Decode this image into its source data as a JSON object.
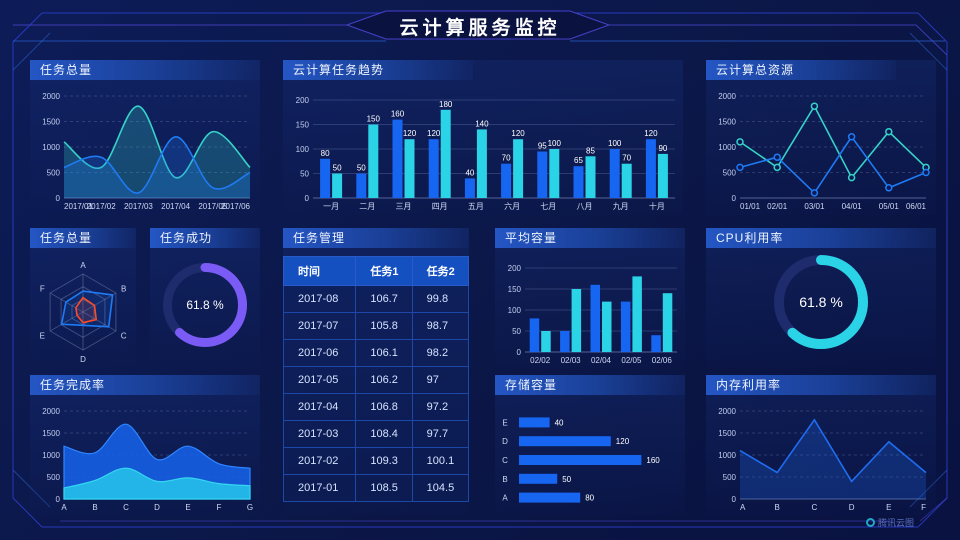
{
  "header": {
    "title": "云计算服务监控"
  },
  "footer": {
    "brand": "腾讯云图"
  },
  "colors": {
    "background": "#0b1747",
    "frame_line": "#2e3ecf",
    "accent_blue": "#1766f2",
    "accent_cyan": "#2bd3e6",
    "accent_teal": "#35d3c8",
    "line_blue": "#1f7bf4",
    "gauge_purple": "#7b5bf5",
    "radar_orange": "#ff4a26",
    "table_header": "#1450c0"
  },
  "chart_data": [
    {
      "id": "task_total_line",
      "type": "area",
      "title": "任务总量",
      "x": [
        "2017/01",
        "2017/02",
        "2017/03",
        "2017/04",
        "2017/05",
        "2017/06"
      ],
      "ylim": [
        0,
        2000
      ],
      "yticks": [
        0,
        500,
        1000,
        1500,
        2000
      ],
      "grid": "dashed",
      "smooth": true,
      "series": [
        {
          "color": "#35d3c8",
          "values": [
            1100,
            600,
            1800,
            400,
            1300,
            600
          ],
          "fill": true
        },
        {
          "color": "#1f7bf4",
          "values": [
            600,
            800,
            100,
            1200,
            200,
            500
          ],
          "fill": true
        }
      ]
    },
    {
      "id": "cloud_task_trend",
      "type": "bar",
      "title": "云计算任务趋势",
      "categories": [
        "一月",
        "二月",
        "三月",
        "四月",
        "五月",
        "六月",
        "七月",
        "八月",
        "九月",
        "十月"
      ],
      "ylim": [
        0,
        200
      ],
      "yticks": [
        0,
        50,
        100,
        150,
        200
      ],
      "value_labels": true,
      "series": [
        {
          "name": "任务1",
          "color": "#1766f2",
          "values": [
            80,
            50,
            160,
            120,
            40,
            70,
            95,
            65,
            100,
            120
          ]
        },
        {
          "name": "任务2",
          "color": "#2bd3e6",
          "values": [
            50,
            150,
            120,
            180,
            140,
            120,
            100,
            85,
            70,
            90
          ]
        }
      ]
    },
    {
      "id": "cloud_total_resource",
      "type": "line",
      "title": "云计算总资源",
      "x": [
        "01/01",
        "02/01",
        "03/01",
        "04/01",
        "05/01",
        "06/01"
      ],
      "ylim": [
        0,
        2000
      ],
      "yticks": [
        0,
        500,
        1000,
        1500,
        2000
      ],
      "grid": "dashed",
      "markers": true,
      "series": [
        {
          "color": "#35d3c8",
          "values": [
            1100,
            600,
            1800,
            400,
            1300,
            600
          ]
        },
        {
          "color": "#1f7bf4",
          "values": [
            600,
            800,
            100,
            1200,
            200,
            500
          ]
        }
      ]
    },
    {
      "id": "task_total_radar",
      "type": "radar",
      "title": "任务总量",
      "axes": [
        "A",
        "B",
        "C",
        "D",
        "E",
        "F"
      ],
      "max": 100,
      "series": [
        {
          "color": "#1f7bf4",
          "values": [
            55,
            90,
            78,
            35,
            65,
            52
          ]
        },
        {
          "color": "#ff4a26",
          "values": [
            38,
            35,
            40,
            28,
            18,
            22
          ]
        }
      ]
    },
    {
      "id": "task_success_gauge",
      "type": "donut",
      "title": "任务成功",
      "percent": 61.8,
      "label": "61.8 %",
      "color": "#7b5bf5",
      "track": "#1e2c6e"
    },
    {
      "id": "task_table",
      "type": "table",
      "title": "任务管理",
      "headers": [
        "时间",
        "任务1",
        "任务2"
      ],
      "rows": [
        [
          "2017-08",
          "106.7",
          "99.8"
        ],
        [
          "2017-07",
          "105.8",
          "98.7"
        ],
        [
          "2017-06",
          "106.1",
          "98.2"
        ],
        [
          "2017-05",
          "106.2",
          "97"
        ],
        [
          "2017-04",
          "106.8",
          "97.2"
        ],
        [
          "2017-03",
          "108.4",
          "97.7"
        ],
        [
          "2017-02",
          "109.3",
          "100.1"
        ],
        [
          "2017-01",
          "108.5",
          "104.5"
        ]
      ]
    },
    {
      "id": "avg_capacity",
      "type": "bar",
      "title": "平均容量",
      "categories": [
        "02/02",
        "02/03",
        "02/04",
        "02/05",
        "02/06"
      ],
      "ylim": [
        0,
        200
      ],
      "yticks": [
        0,
        50,
        100,
        150,
        200
      ],
      "value_labels": false,
      "series": [
        {
          "color": "#1766f2",
          "values": [
            80,
            50,
            160,
            120,
            40
          ]
        },
        {
          "color": "#2bd3e6",
          "values": [
            50,
            150,
            120,
            180,
            140
          ]
        }
      ]
    },
    {
      "id": "cpu_usage_gauge",
      "type": "donut",
      "title": "CPU利用率",
      "percent": 61.8,
      "label": "61.8 %",
      "color": "#2bd3e6",
      "track": "#1e2c6e"
    },
    {
      "id": "task_completion",
      "type": "stacked_area",
      "title": "任务完成率",
      "x": [
        "A",
        "B",
        "C",
        "D",
        "E",
        "F",
        "G"
      ],
      "ylim": [
        0,
        2000
      ],
      "yticks": [
        0,
        500,
        1000,
        1500,
        2000
      ],
      "grid": "dashed",
      "smooth": true,
      "series": [
        {
          "color": "#1661e8",
          "edge": "#2e86ff",
          "values": [
            1200,
            1050,
            1700,
            900,
            1200,
            800,
            700
          ]
        },
        {
          "color": "#25c0ea",
          "edge": "#35d6f0",
          "values": [
            250,
            420,
            700,
            400,
            480,
            350,
            300
          ]
        }
      ]
    },
    {
      "id": "storage",
      "type": "hbar",
      "title": "存储容量",
      "categories": [
        "E",
        "D",
        "C",
        "B",
        "A"
      ],
      "values": [
        40,
        120,
        160,
        50,
        80
      ],
      "color": "#1766f2",
      "xmax": 170
    },
    {
      "id": "memory_usage",
      "type": "line_area",
      "title": "内存利用率",
      "x": [
        "A",
        "B",
        "C",
        "D",
        "E",
        "F"
      ],
      "ylim": [
        0,
        2000
      ],
      "yticks": [
        0,
        500,
        1000,
        1500,
        2000
      ],
      "grid": "dashed",
      "series": [
        {
          "color": "#1f6df0",
          "values": [
            1100,
            600,
            1800,
            400,
            1300,
            600
          ],
          "fill": true
        }
      ]
    }
  ]
}
